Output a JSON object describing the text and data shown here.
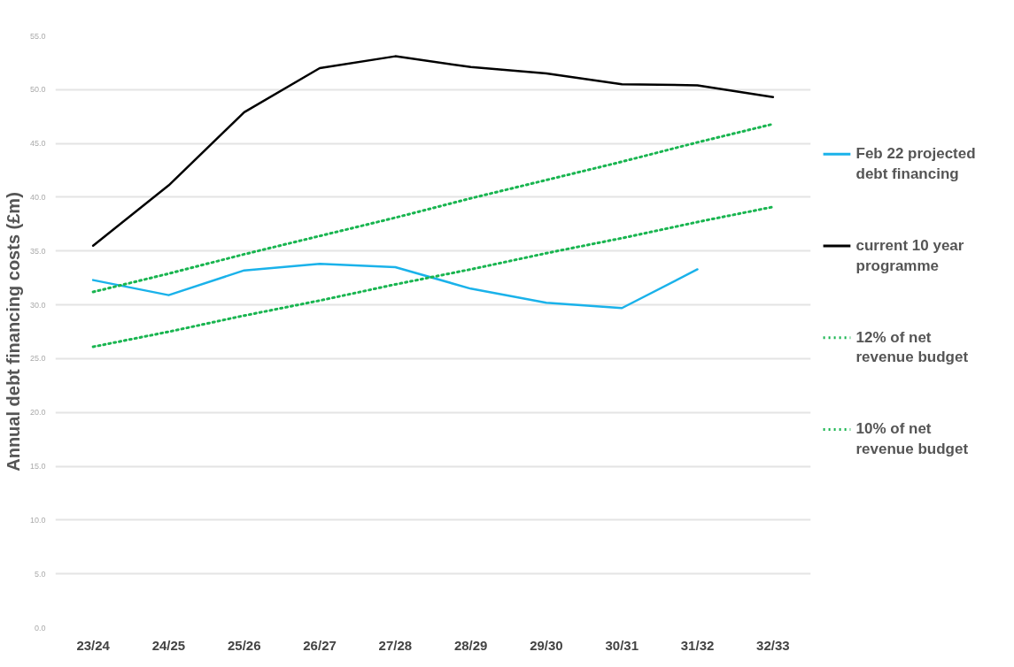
{
  "chart_data": {
    "type": "line",
    "categories": [
      "23/24",
      "24/25",
      "25/26",
      "26/27",
      "27/28",
      "28/29",
      "29/30",
      "30/31",
      "31/32",
      "32/33"
    ],
    "ylabel": "Annual debt financing costs (£m)",
    "ylim": [
      0,
      55
    ],
    "yticks": [
      {
        "value": 0,
        "label": "0.0"
      },
      {
        "value": 5,
        "label": "5.0"
      },
      {
        "value": 10,
        "label": "10.0"
      },
      {
        "value": 15,
        "label": "15.0"
      },
      {
        "value": 20,
        "label": "20.0"
      },
      {
        "value": 25,
        "label": "25.0"
      },
      {
        "value": 30,
        "label": "30.0"
      },
      {
        "value": 35,
        "label": "35.0"
      },
      {
        "value": 40,
        "label": "40.0"
      },
      {
        "value": 45,
        "label": "45.0"
      },
      {
        "value": 50,
        "label": "50.0"
      },
      {
        "value": 55,
        "label": "55.0"
      }
    ],
    "grid": "y",
    "legend": "right",
    "line_style": "solid",
    "series": [
      {
        "name": "Feb 22 projected debt financing",
        "color": "#1ab2ea",
        "values": [
          32.3,
          30.9,
          33.2,
          33.8,
          33.5,
          31.5,
          30.2,
          29.7,
          33.3,
          null
        ]
      },
      {
        "name": "current 10 year programme",
        "color": "#000000",
        "values": [
          35.5,
          41.1,
          47.9,
          52.0,
          53.1,
          52.1,
          51.5,
          50.5,
          50.4,
          49.3
        ]
      },
      {
        "name": "12% of net revenue budget",
        "color": "#19b550",
        "line_style": "dotted",
        "values": [
          31.2,
          32.9,
          34.7,
          36.4,
          38.1,
          39.9,
          41.6,
          43.3,
          45.1,
          46.8
        ]
      },
      {
        "name": "10% of net revenue budget",
        "color": "#19b550",
        "line_style": "dotted",
        "values": [
          26.1,
          27.5,
          29.0,
          30.4,
          31.9,
          33.3,
          34.8,
          36.2,
          37.7,
          39.1
        ]
      }
    ]
  }
}
